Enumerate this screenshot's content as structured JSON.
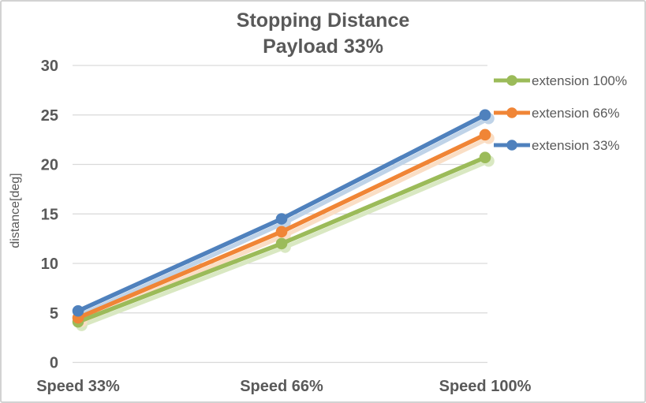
{
  "window": {
    "background": "#ffffff",
    "border_color": "#d2d2d2"
  },
  "chart_data": {
    "type": "line",
    "title": "Stopping Distance",
    "subtitle": "Payload 33%",
    "ylabel": "distance[deg]",
    "categories": [
      "Speed 33%",
      "Speed 66%",
      "Speed 100%"
    ],
    "series": [
      {
        "name": "extension 100%",
        "color": "#9BBB59",
        "shadow": "#D9E8C2",
        "values": [
          4.1,
          12.0,
          20.7
        ]
      },
      {
        "name": "extension 66%",
        "color": "#F08536",
        "shadow": "#FADEC5",
        "values": [
          4.5,
          13.2,
          23.0
        ]
      },
      {
        "name": "extension 33%",
        "color": "#4F81BD",
        "shadow": "#BFD3E8",
        "values": [
          5.2,
          14.5,
          25.0
        ]
      }
    ],
    "y_ticks": [
      0,
      5,
      10,
      15,
      20,
      25,
      30
    ],
    "ylim": [
      0,
      30
    ],
    "grid": true,
    "grid_color": "#D9D9D9",
    "text_color": "#595959",
    "legend_position": "right",
    "marker": "circle"
  }
}
